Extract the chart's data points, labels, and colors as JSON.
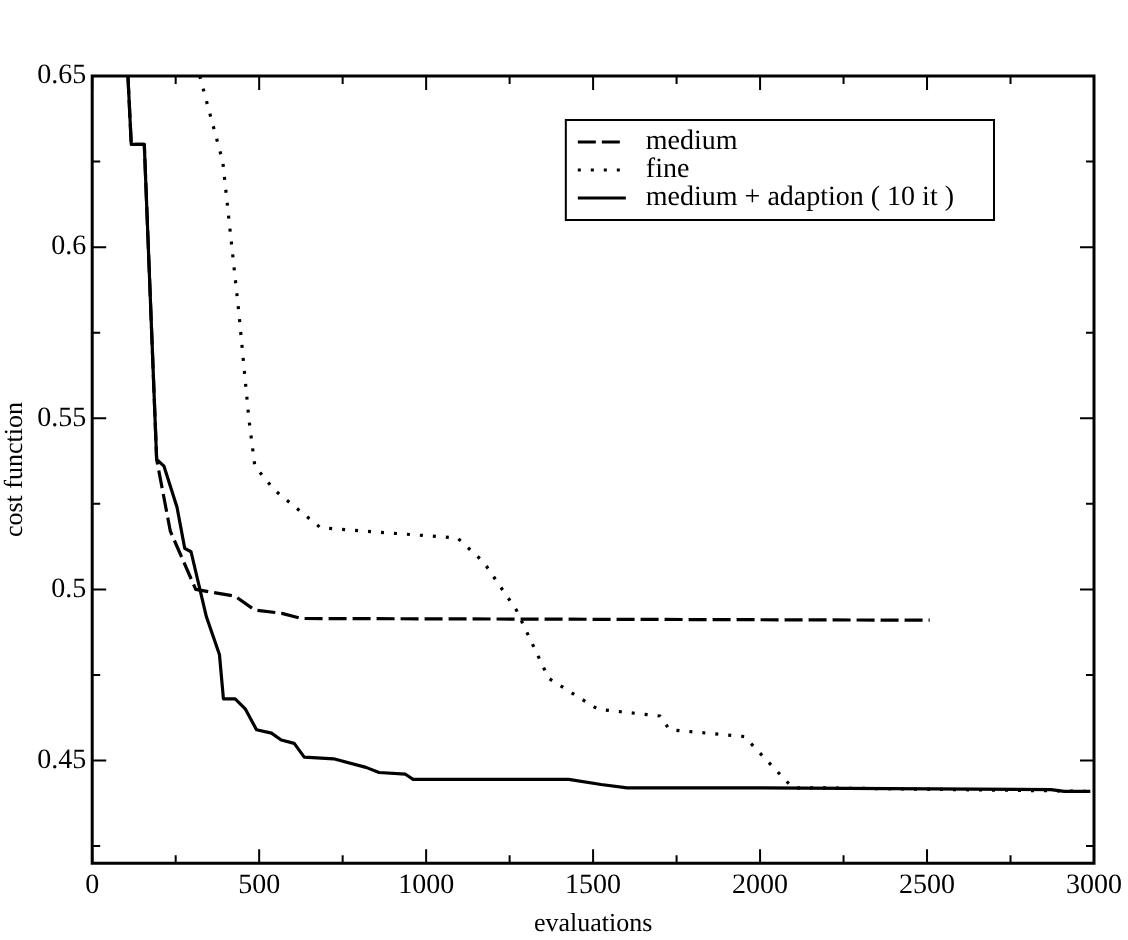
{
  "chart_data": {
    "type": "line",
    "xlabel": "evaluations",
    "ylabel": "cost function",
    "xlim": [
      0,
      3000
    ],
    "ylim": [
      0.42,
      0.65
    ],
    "xticks": [
      0,
      {
        "value": 250,
        "label": null
      },
      500,
      {
        "value": 750,
        "label": null
      },
      1000,
      {
        "value": 1250,
        "label": null
      },
      1500,
      {
        "value": 1750,
        "label": null
      },
      2000,
      {
        "value": 2250,
        "label": null
      },
      2500,
      {
        "value": 2750,
        "label": null
      },
      3000
    ],
    "yticks": [
      {
        "value": 0.425,
        "label": null
      },
      0.45,
      {
        "value": 0.475,
        "label": null
      },
      0.5,
      {
        "value": 0.525,
        "label": null
      },
      0.55,
      {
        "value": 0.575,
        "label": null
      },
      0.6,
      {
        "value": 0.625,
        "label": null
      },
      0.65
    ],
    "grid": false,
    "legend": "top right",
    "marker": "none",
    "series": [
      {
        "name": "medium",
        "color": "#000000",
        "line_style": "dashed",
        "x": [
          107,
          117,
          156,
          193,
          234,
          310,
          428,
          486,
          568,
          627,
          2508
        ],
        "values": [
          0.65,
          0.63,
          0.63,
          0.538,
          0.517,
          0.5,
          0.498,
          0.494,
          0.493,
          0.4915,
          0.491
        ]
      },
      {
        "name": "fine",
        "color": "#000000",
        "line_style": "dotted",
        "x": [
          322,
          391,
          439,
          469,
          487,
          546,
          684,
          1094,
          1172,
          1270,
          1367,
          1514,
          1700,
          1729,
          1953,
          2098,
          2186,
          2989
        ],
        "values": [
          0.65,
          0.625,
          0.581,
          0.55,
          0.536,
          0.529,
          0.518,
          0.515,
          0.508,
          0.494,
          0.474,
          0.465,
          0.463,
          0.459,
          0.457,
          0.442,
          0.442,
          0.441
        ]
      },
      {
        "name": "medium + adaption ( 10 it )",
        "color": "#000000",
        "line_style": "solid",
        "x": [
          107,
          117,
          156,
          193,
          215,
          254,
          277,
          296,
          342,
          381,
          393,
          428,
          459,
          492,
          537,
          566,
          605,
          635,
          723,
          820,
          859,
          938,
          961,
          1133,
          1427,
          1524,
          1602,
          1993,
          2871,
          2911,
          2989
        ],
        "values": [
          0.65,
          0.63,
          0.63,
          0.538,
          0.536,
          0.524,
          0.512,
          0.511,
          0.492,
          0.481,
          0.468,
          0.468,
          0.465,
          0.459,
          0.458,
          0.456,
          0.455,
          0.451,
          0.4505,
          0.448,
          0.4465,
          0.446,
          0.4445,
          0.4445,
          0.4445,
          0.443,
          0.442,
          0.442,
          0.4415,
          0.441,
          0.441
        ]
      }
    ]
  }
}
